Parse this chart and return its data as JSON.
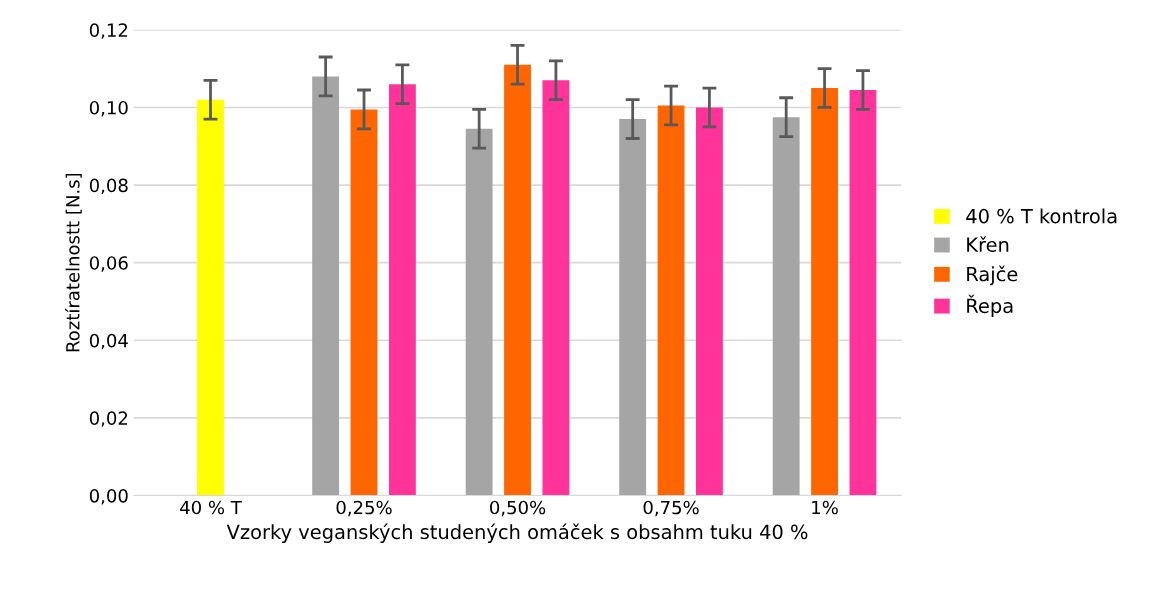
{
  "chart_data": {
    "type": "bar",
    "xlabel": "Vzorky veganských studených omáček s obsahm tuku 40 %",
    "ylabel": "Roztíratelnostt [N.s]",
    "categories": [
      "40 % T",
      "0,25%",
      "0,50%",
      "0,75%",
      "1%"
    ],
    "series": [
      {
        "name": "40 % T kontrola",
        "color": "#ffff00",
        "values": [
          0.102,
          null,
          null,
          null,
          null
        ],
        "errors": [
          0.005,
          null,
          null,
          null,
          null
        ]
      },
      {
        "name": "Křen",
        "color": "#a5a5a5",
        "values": [
          null,
          0.108,
          0.0945,
          0.097,
          0.0975
        ],
        "errors": [
          null,
          0.005,
          0.005,
          0.005,
          0.005
        ]
      },
      {
        "name": "Rajče",
        "color": "#ff6600",
        "values": [
          null,
          0.0995,
          0.111,
          0.1005,
          0.105
        ],
        "errors": [
          null,
          0.005,
          0.005,
          0.005,
          0.005
        ]
      },
      {
        "name": "Řepa",
        "color": "#ff3399",
        "values": [
          null,
          0.106,
          0.107,
          0.1,
          0.1045
        ],
        "errors": [
          null,
          0.005,
          0.005,
          0.005,
          0.005
        ]
      }
    ],
    "ylim": [
      0,
      0.12
    ],
    "yticks": [
      {
        "value": 0,
        "label": "0,00"
      },
      {
        "value": 0.02,
        "label": "0,02"
      },
      {
        "value": 0.04,
        "label": "0,04"
      },
      {
        "value": 0.06,
        "label": "0,06"
      },
      {
        "value": 0.08,
        "label": "0,08"
      },
      {
        "value": 0.1,
        "label": "0,10"
      },
      {
        "value": 0.12,
        "label": "0,12"
      }
    ],
    "grid": "y",
    "legend": "right"
  }
}
